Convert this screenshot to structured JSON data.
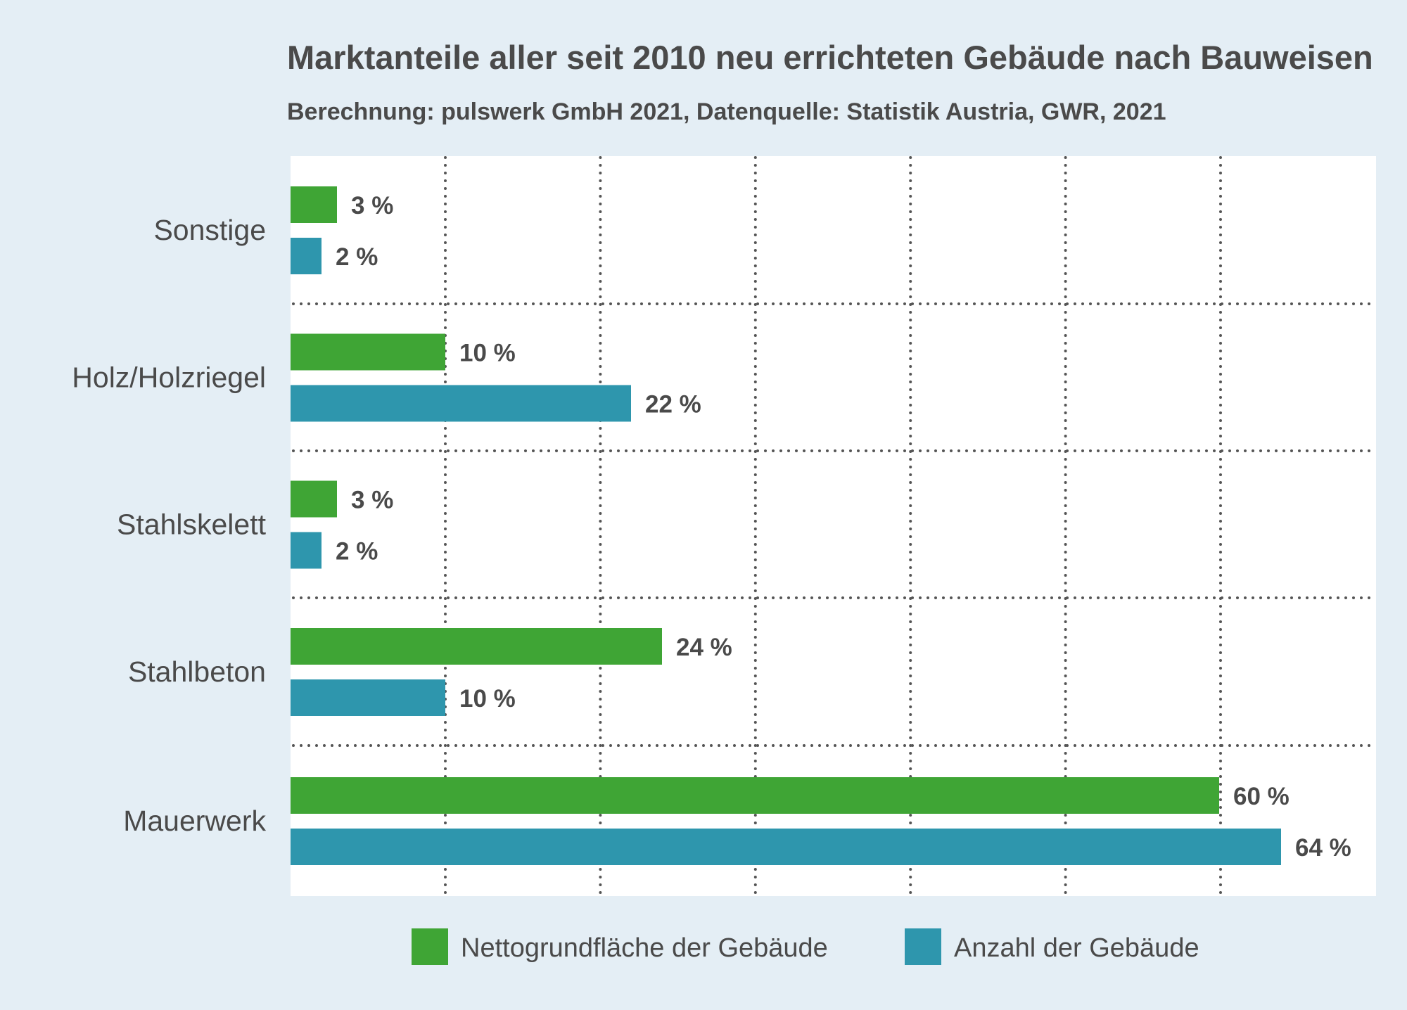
{
  "chart_data": {
    "type": "bar",
    "orientation": "horizontal",
    "title": "Marktanteile aller seit 2010 neu errichteten Gebäude nach Bauweisen",
    "subtitle": "Berechnung: pulswerk GmbH 2021, Datenquelle: Statistik Austria, GWR, 2021",
    "categories": [
      "Sonstige",
      "Holz/Holzriegel",
      "Stahlskelett",
      "Stahlbeton",
      "Mauerwerk"
    ],
    "series": [
      {
        "name": "Nettogrundfläche der Gebäude",
        "color": "#3fa535",
        "values": [
          3,
          10,
          3,
          24,
          60
        ],
        "labels": [
          "3 %",
          "10 %",
          "3 %",
          "24 %",
          "60 %"
        ]
      },
      {
        "name": "Anzahl der Gebäude",
        "color": "#2e96ad",
        "values": [
          2,
          22,
          2,
          10,
          64
        ],
        "labels": [
          "2 %",
          "22 %",
          "2 %",
          "10 %",
          "64 %"
        ]
      }
    ],
    "xlim": [
      0,
      70
    ],
    "grid": true,
    "legend_position": "bottom",
    "plot_background": "#ffffff",
    "page_background": "#e4eef5",
    "text_color": "#4a4a4a"
  }
}
